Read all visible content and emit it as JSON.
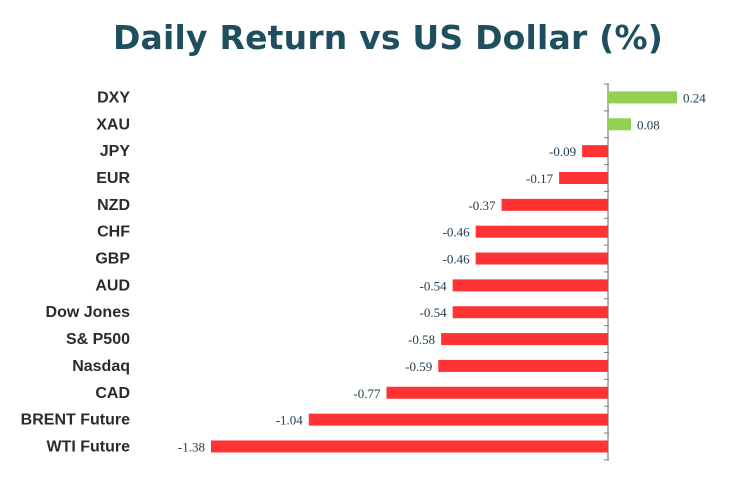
{
  "chart_data": {
    "type": "bar",
    "orientation": "horizontal",
    "title": "Daily Return vs US Dollar (%)",
    "categories": [
      "DXY",
      "XAU",
      "JPY",
      "EUR",
      "NZD",
      "CHF",
      "GBP",
      "AUD",
      "Dow Jones",
      "S& P500",
      "Nasdaq",
      "CAD",
      "BRENT Future",
      "WTI Future"
    ],
    "values": [
      0.24,
      0.08,
      -0.09,
      -0.17,
      -0.37,
      -0.46,
      -0.46,
      -0.54,
      -0.54,
      -0.58,
      -0.59,
      -0.77,
      -1.04,
      -1.38
    ],
    "value_labels": [
      "0.24",
      "0.08",
      "-0.09",
      "-0.17",
      "-0.37",
      "-0.46",
      "-0.46",
      "-0.54",
      "-0.54",
      "-0.58",
      "-0.59",
      "-0.77",
      "-1.04",
      "-1.38"
    ],
    "xlim": [
      -1.38,
      0.24
    ],
    "grid": false,
    "legend": "none",
    "colors": {
      "positive": "#92D050",
      "negative": "#FF3333",
      "axis": "#7F7F7F",
      "title": "#1F4E5F"
    }
  }
}
